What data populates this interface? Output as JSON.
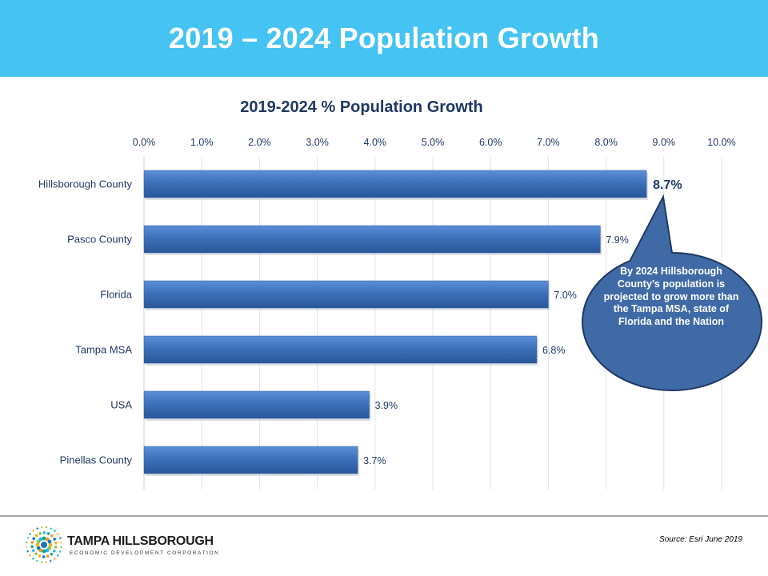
{
  "header": {
    "title": "2019 – 2024 Population Growth"
  },
  "chart_data": {
    "type": "bar",
    "orientation": "horizontal",
    "title": "2019-2024 % Population Growth",
    "categories": [
      "Hillsborough County",
      "Pasco County",
      "Florida",
      "Tampa MSA",
      "USA",
      "Pinellas County"
    ],
    "values": [
      8.7,
      7.9,
      7.0,
      6.8,
      3.9,
      3.7
    ],
    "data_labels": [
      "8.7%",
      "7.9%",
      "7.0%",
      "6.8%",
      "3.9%",
      "3.7%"
    ],
    "xlim": [
      0,
      10
    ],
    "xticks": [
      "0.0%",
      "1.0%",
      "2.0%",
      "3.0%",
      "4.0%",
      "5.0%",
      "6.0%",
      "7.0%",
      "8.0%",
      "9.0%",
      "10.0%"
    ],
    "axis_position": "top",
    "grid": true,
    "bar_color": "#3a6fb8",
    "highlight_label_color": "#1f3864"
  },
  "callout": {
    "text": "By 2024 Hillsborough County’s population is projected to grow more than the Tampa MSA, state of Florida and the Nation",
    "fill_color": "#3f6aa6"
  },
  "footer": {
    "logo_name": "TAMPA HILLSBOROUGH",
    "logo_subtitle": "ECONOMIC DEVELOPMENT CORPORATION",
    "source": "Source:  Esri June 2019"
  }
}
